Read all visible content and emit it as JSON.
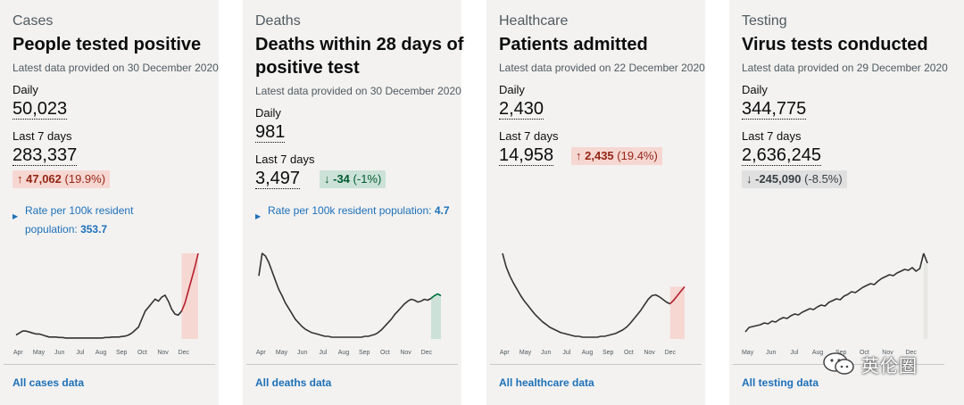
{
  "cards": [
    {
      "category": "Cases",
      "title": "People tested positive",
      "latest": "Latest data provided on 30 December 2020",
      "daily_label": "Daily",
      "daily_value": "50,023",
      "week_label": "Last 7 days",
      "week_value": "283,337",
      "change_arrow": "↑",
      "change_amount": "47,062",
      "change_pct": "(19.9%)",
      "rate_text": "Rate per 100k resident population:",
      "rate_value": "353.7",
      "link": "All cases data",
      "chart_data": {
        "type": "line",
        "x_ticks": [
          "Apr",
          "May",
          "Jun",
          "Jul",
          "Aug",
          "Sep",
          "Oct",
          "Nov",
          "Dec"
        ],
        "y": [
          4,
          6,
          8,
          8,
          7,
          6,
          5,
          5,
          4,
          3,
          2,
          2,
          2,
          1.5,
          1.5,
          1,
          1,
          1,
          1,
          1,
          1,
          1,
          1,
          1,
          1,
          1,
          1,
          1.5,
          1.5,
          2,
          2,
          2,
          2.5,
          3,
          4,
          6,
          9,
          12,
          20,
          28,
          32,
          36,
          40,
          38,
          42,
          44,
          38,
          30,
          25,
          24,
          28,
          36,
          48,
          60,
          72,
          86
        ],
        "highlight_from": 50,
        "colors": {
          "line": "#333333",
          "highlight": "#b51f2e",
          "band": "#f6d7d2"
        }
      }
    },
    {
      "category": "Deaths",
      "title": "Deaths within 28 days of positive test",
      "latest": "Latest data provided on 30 December 2020",
      "daily_label": "Daily",
      "daily_value": "981",
      "week_label": "Last 7 days",
      "week_value": "3,497",
      "change_arrow": "↓",
      "change_amount": "-34",
      "change_pct": "(-1%)",
      "rate_text": "Rate per 100k resident population:",
      "rate_value": "4.7",
      "link": "All deaths data",
      "chart_data": {
        "type": "line",
        "x_ticks": [
          "Apr",
          "May",
          "Jun",
          "Jul",
          "Aug",
          "Sep",
          "Oct",
          "Nov",
          "Dec"
        ],
        "y": [
          70,
          95,
          92,
          85,
          75,
          65,
          55,
          48,
          40,
          34,
          28,
          22,
          18,
          14,
          11,
          9,
          7,
          6,
          5,
          4,
          3,
          3,
          2,
          2,
          2,
          2,
          2,
          2,
          2,
          2,
          2,
          2,
          3,
          3,
          4,
          5,
          7,
          10,
          14,
          18,
          22,
          27,
          31,
          35,
          39,
          42,
          44,
          43,
          41,
          42,
          44,
          43,
          45,
          48,
          50,
          48
        ],
        "highlight_from": 52,
        "colors": {
          "line": "#333333",
          "highlight": "#00703c",
          "band": "#cce2d8"
        }
      }
    },
    {
      "category": "Healthcare",
      "title": "Patients admitted",
      "latest": "Latest data provided on 22 December 2020",
      "daily_label": "Daily",
      "daily_value": "2,430",
      "week_label": "Last 7 days",
      "week_value": "14,958",
      "change_arrow": "↑",
      "change_amount": "2,435",
      "change_pct": "(19.4%)",
      "link": "All healthcare data",
      "chart_data": {
        "type": "line",
        "x_ticks": [
          "Apr",
          "May",
          "Jun",
          "Jul",
          "Aug",
          "Sep",
          "Oct",
          "Nov",
          "Dec"
        ],
        "y": [
          95,
          80,
          70,
          62,
          55,
          48,
          42,
          37,
          32,
          27,
          23,
          19,
          16,
          13,
          11,
          9,
          7,
          6,
          5,
          4,
          3,
          3,
          2,
          2,
          2,
          2,
          2,
          3,
          3,
          4,
          5,
          6,
          8,
          10,
          13,
          17,
          22,
          27,
          32,
          38,
          44,
          48,
          49,
          47,
          44,
          41,
          39,
          43,
          48,
          53,
          58
        ],
        "highlight_from": 46,
        "colors": {
          "line": "#333333",
          "highlight": "#b51f2e",
          "band": "#f6d7d2"
        }
      }
    },
    {
      "category": "Testing",
      "title": "Virus tests conducted",
      "latest": "Latest data provided on 29 December 2020",
      "daily_label": "Daily",
      "daily_value": "344,775",
      "week_label": "Last 7 days",
      "week_value": "2,636,245",
      "change_arrow": "↓",
      "change_amount": "-245,090",
      "change_pct": "(-8.5%)",
      "link": "All testing data",
      "chart_data": {
        "type": "line",
        "x_ticks": [
          "May",
          "Jun",
          "Jul",
          "Aug",
          "Sep",
          "Oct",
          "Nov",
          "Dec"
        ],
        "y": [
          8,
          13,
          14,
          15,
          16,
          18,
          17,
          20,
          19,
          22,
          24,
          23,
          26,
          28,
          27,
          30,
          32,
          34,
          33,
          36,
          38,
          37,
          41,
          43,
          45,
          44,
          48,
          50,
          53,
          52,
          55,
          58,
          60,
          62,
          61,
          65,
          68,
          70,
          72,
          71,
          74,
          76,
          78,
          77,
          80,
          76,
          79,
          96,
          85
        ],
        "highlight_from": 47,
        "colors": {
          "line": "#333333",
          "highlight": "#333333",
          "band": "#e6e6e3"
        }
      }
    }
  ],
  "watermark": {
    "text": "英伦圈"
  }
}
